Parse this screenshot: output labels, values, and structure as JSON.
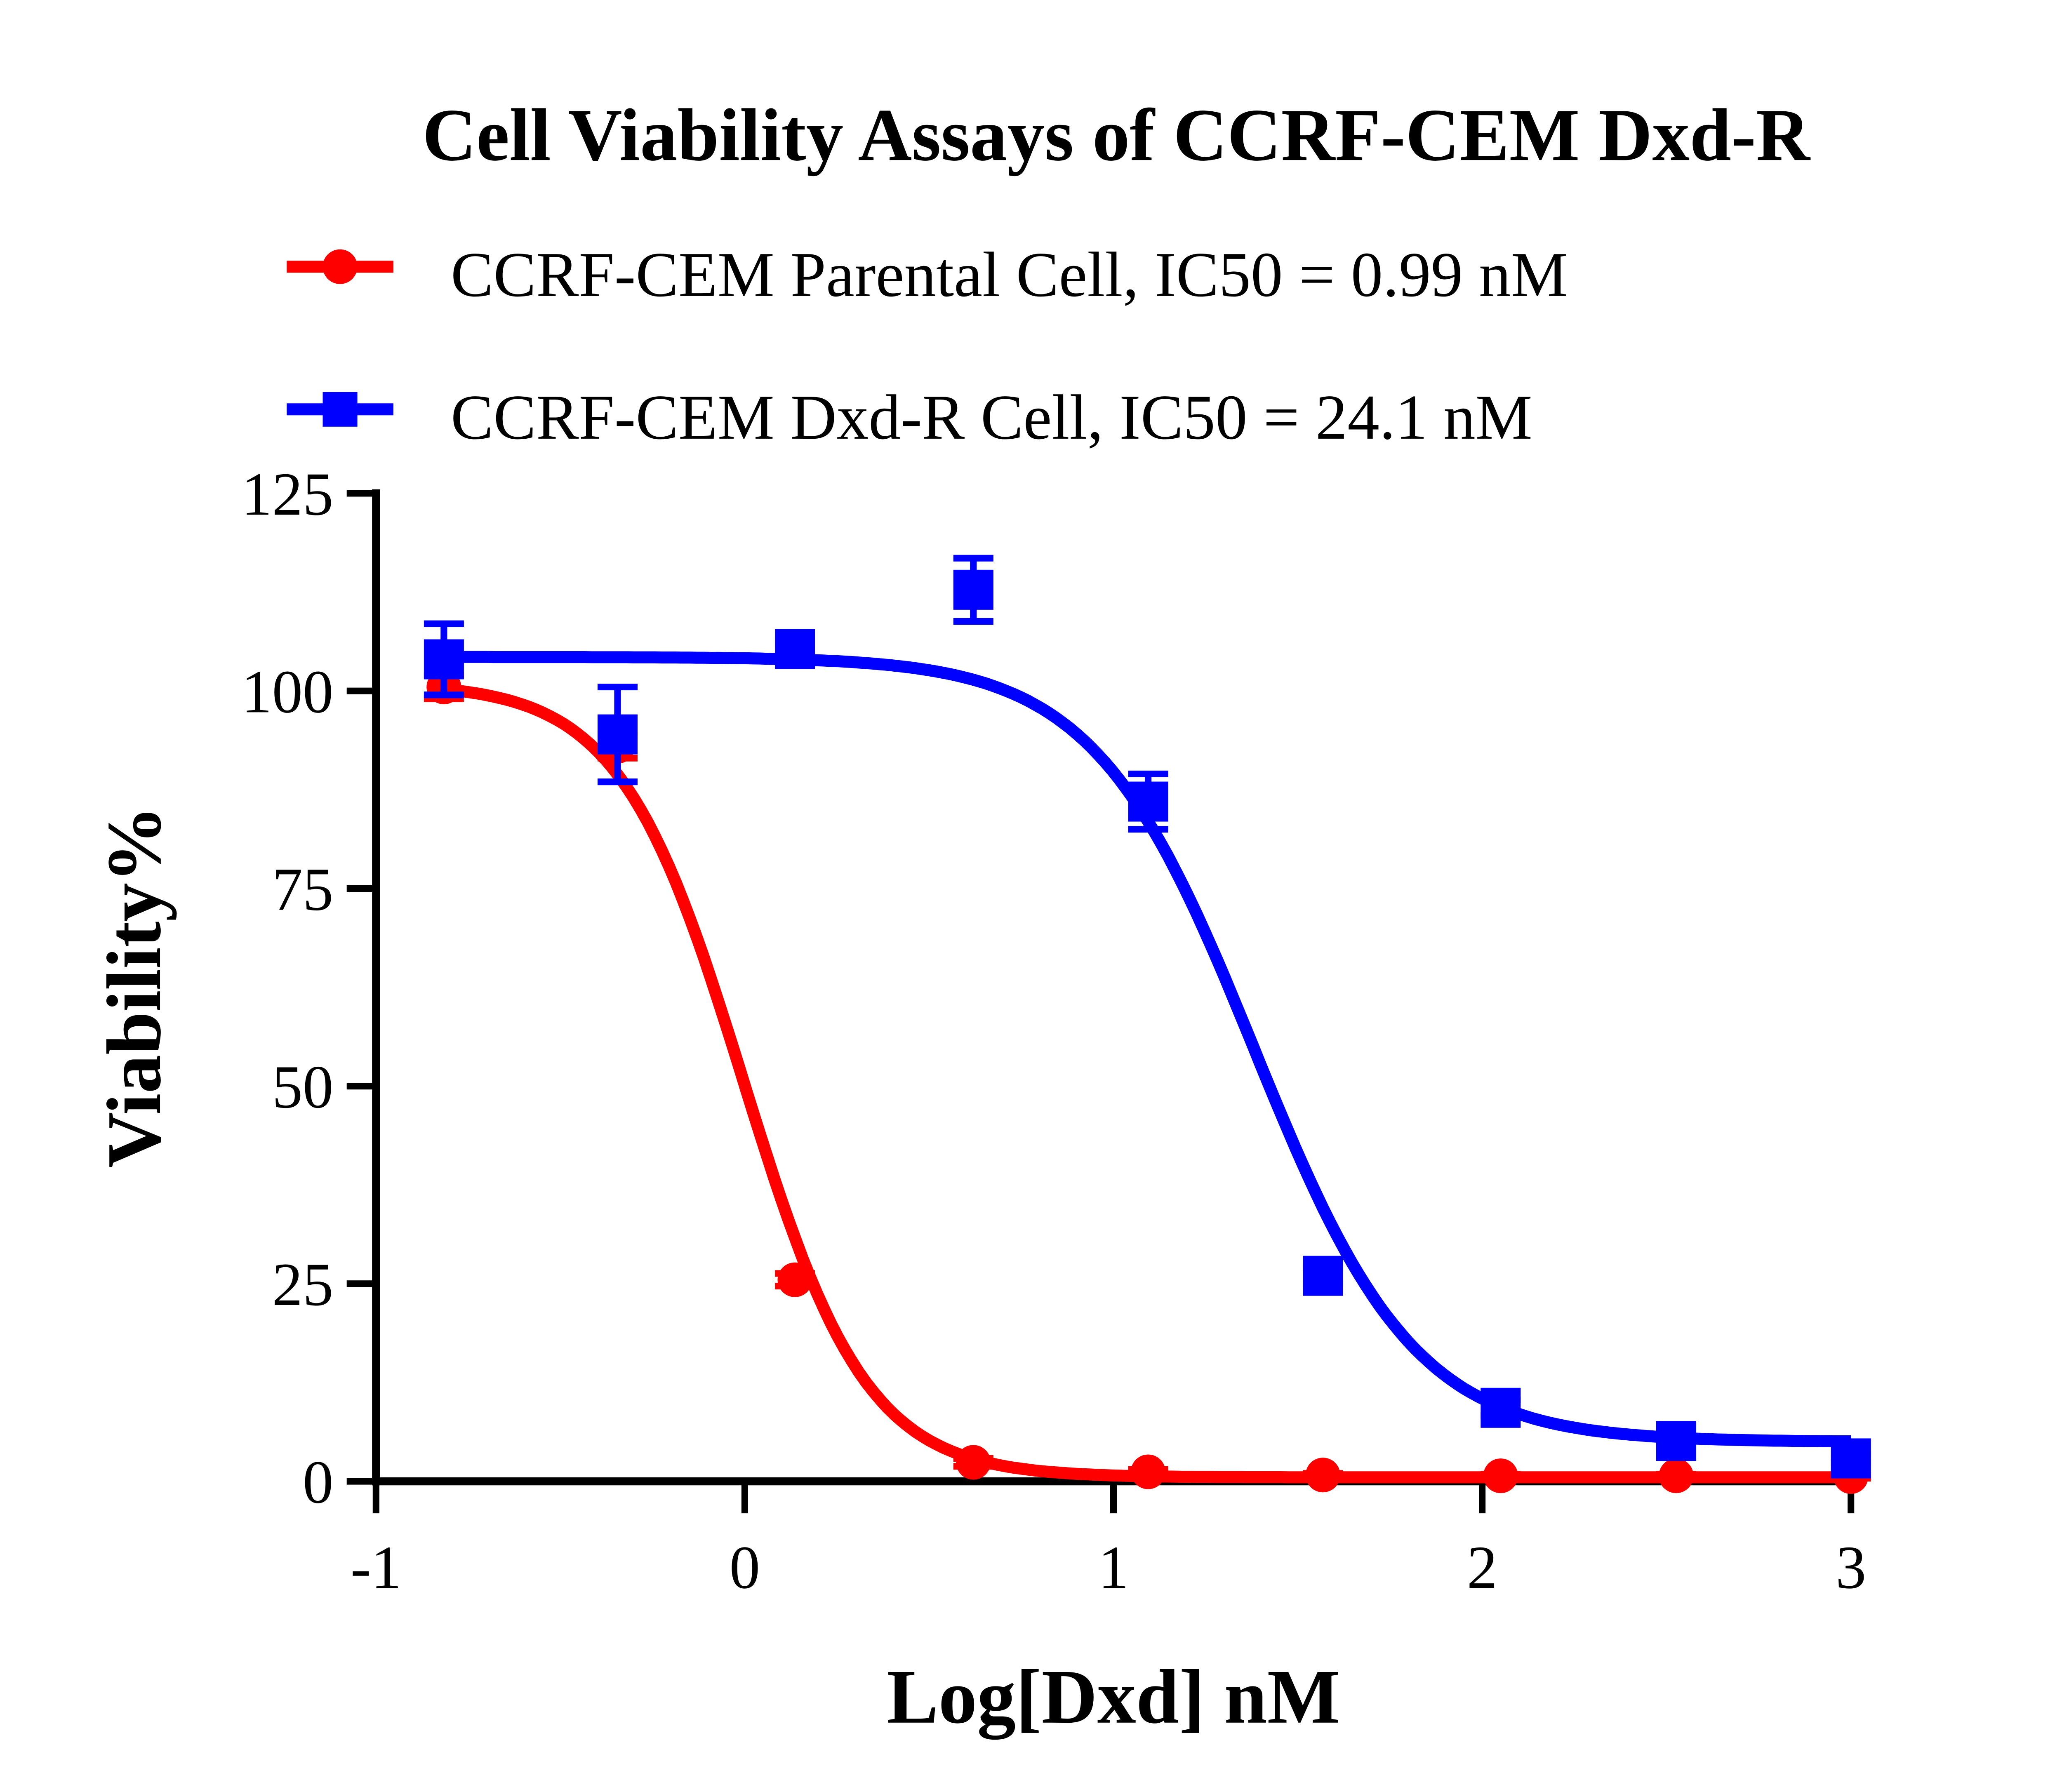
{
  "chart_data": {
    "type": "scatter",
    "title": "Cell Viability Assays of CCRF-CEM Dxd-R",
    "xlabel": "Log[Dxd] nM",
    "ylabel": "Viability%",
    "xlim": [
      -1,
      3
    ],
    "ylim": [
      0,
      125
    ],
    "xticks": [
      "-1",
      "0",
      "1",
      "2",
      "3"
    ],
    "yticks": [
      "0",
      "25",
      "50",
      "75",
      "100",
      "125"
    ],
    "grid": false,
    "legend_placement": "top",
    "series": [
      {
        "name": "CCRF-CEM Parental Cell, IC50 = 0.99 nM",
        "color": "#ff0000",
        "marker": "circle",
        "ic50_nM": 0.99,
        "x": [
          -0.816,
          -0.345,
          0.136,
          0.62,
          1.094,
          1.568,
          2.05,
          2.526,
          3.0
        ],
        "y": [
          100.5,
          93,
          25.5,
          2.4,
          1.2,
          0.8,
          0.7,
          0.7,
          0.6
        ],
        "err": [
          1.5,
          1.5,
          0.8,
          0.5,
          0.3,
          0.2,
          0.2,
          0.2,
          0.2
        ]
      },
      {
        "name": "CCRF-CEM Dxd-R Cell, IC50 = 24.1 nM",
        "color": "#0000ff",
        "marker": "square",
        "ic50_nM": 24.1,
        "x": [
          -0.816,
          -0.345,
          0.136,
          0.62,
          1.094,
          1.568,
          2.05,
          2.526,
          3.0
        ],
        "y": [
          104,
          94.5,
          105.3,
          112.8,
          86,
          26,
          9.3,
          5.1,
          2.9
        ],
        "err": [
          4.5,
          6,
          0.8,
          4,
          3.5,
          1,
          1,
          0.5,
          0.5
        ]
      }
    ]
  }
}
